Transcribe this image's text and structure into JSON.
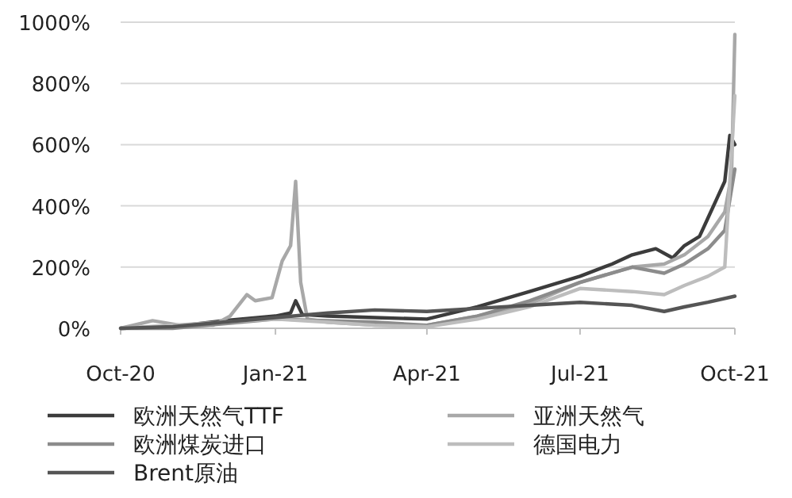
{
  "chart_data": {
    "type": "line",
    "ylim": [
      0,
      1000
    ],
    "yticks": [
      {
        "value": 0,
        "label": "0%"
      },
      {
        "value": 200,
        "label": "200%"
      },
      {
        "value": 400,
        "label": "400%"
      },
      {
        "value": 600,
        "label": "600%"
      },
      {
        "value": 800,
        "label": "800%"
      },
      {
        "value": 1000,
        "label": "1000%"
      }
    ],
    "xlim": [
      "2020-10-01",
      "2021-10-01"
    ],
    "xticks": [
      {
        "value": "2020-10-01",
        "label": "Oct-20"
      },
      {
        "value": "2021-01-01",
        "label": "Jan-21"
      },
      {
        "value": "2021-04-01",
        "label": "Apr-21"
      },
      {
        "value": "2021-07-01",
        "label": "Jul-21"
      },
      {
        "value": "2021-10-01",
        "label": "Oct-21"
      }
    ],
    "grid": "y",
    "legend": "bottom",
    "line_style": "solid",
    "series": [
      {
        "name": "欧洲天然气TTF",
        "color": "#3c3c3c",
        "x": [
          "2020-10-01",
          "2020-11-01",
          "2020-12-01",
          "2021-01-01",
          "2021-01-10",
          "2021-01-13",
          "2021-01-17",
          "2021-02-01",
          "2021-03-01",
          "2021-04-01",
          "2021-05-01",
          "2021-06-01",
          "2021-07-01",
          "2021-07-20",
          "2021-08-01",
          "2021-08-15",
          "2021-08-25",
          "2021-09-01",
          "2021-09-10",
          "2021-09-15",
          "2021-09-20",
          "2021-09-25",
          "2021-09-28",
          "2021-10-01"
        ],
        "values": [
          0,
          5,
          25,
          40,
          50,
          90,
          45,
          40,
          35,
          30,
          70,
          120,
          170,
          210,
          240,
          260,
          230,
          270,
          300,
          360,
          420,
          480,
          630,
          600
        ]
      },
      {
        "name": "亚洲天然气",
        "color": "#a8a8a8",
        "x": [
          "2020-10-01",
          "2020-10-20",
          "2020-11-05",
          "2020-11-25",
          "2020-12-05",
          "2020-12-15",
          "2020-12-20",
          "2020-12-30",
          "2021-01-05",
          "2021-01-10",
          "2021-01-13",
          "2021-01-16",
          "2021-01-20",
          "2021-02-01",
          "2021-03-01",
          "2021-04-01",
          "2021-05-01",
          "2021-06-01",
          "2021-07-01",
          "2021-08-01",
          "2021-08-20",
          "2021-09-01",
          "2021-09-15",
          "2021-09-25",
          "2021-09-29",
          "2021-10-01"
        ],
        "values": [
          0,
          25,
          10,
          10,
          40,
          110,
          90,
          100,
          220,
          270,
          480,
          150,
          30,
          20,
          10,
          10,
          40,
          80,
          150,
          200,
          210,
          240,
          300,
          380,
          500,
          960
        ]
      },
      {
        "name": "欧洲煤炭进口",
        "color": "#8c8c8c",
        "x": [
          "2020-10-01",
          "2020-11-01",
          "2020-12-01",
          "2021-01-01",
          "2021-02-01",
          "2021-03-01",
          "2021-04-01",
          "2021-05-01",
          "2021-06-01",
          "2021-07-01",
          "2021-08-01",
          "2021-08-20",
          "2021-09-01",
          "2021-09-15",
          "2021-09-25",
          "2021-10-01"
        ],
        "values": [
          0,
          0,
          15,
          30,
          25,
          20,
          10,
          40,
          90,
          150,
          200,
          180,
          210,
          260,
          320,
          520
        ]
      },
      {
        "name": "德国电力",
        "color": "#bdbdbd",
        "x": [
          "2020-10-01",
          "2020-11-01",
          "2020-12-01",
          "2021-01-01",
          "2021-02-01",
          "2021-03-01",
          "2021-04-01",
          "2021-05-01",
          "2021-06-01",
          "2021-07-01",
          "2021-08-01",
          "2021-08-20",
          "2021-09-01",
          "2021-09-15",
          "2021-09-25",
          "2021-10-01"
        ],
        "values": [
          0,
          10,
          20,
          30,
          20,
          10,
          5,
          30,
          70,
          130,
          120,
          110,
          140,
          170,
          200,
          760
        ]
      },
      {
        "name": "Brent原油",
        "color": "#555555",
        "x": [
          "2020-10-01",
          "2020-11-01",
          "2020-12-01",
          "2021-01-01",
          "2021-02-01",
          "2021-03-01",
          "2021-04-01",
          "2021-05-01",
          "2021-06-01",
          "2021-07-01",
          "2021-08-01",
          "2021-08-20",
          "2021-09-01",
          "2021-09-15",
          "2021-10-01"
        ],
        "values": [
          0,
          5,
          20,
          35,
          50,
          60,
          55,
          65,
          75,
          85,
          75,
          55,
          70,
          85,
          105
        ]
      }
    ]
  }
}
